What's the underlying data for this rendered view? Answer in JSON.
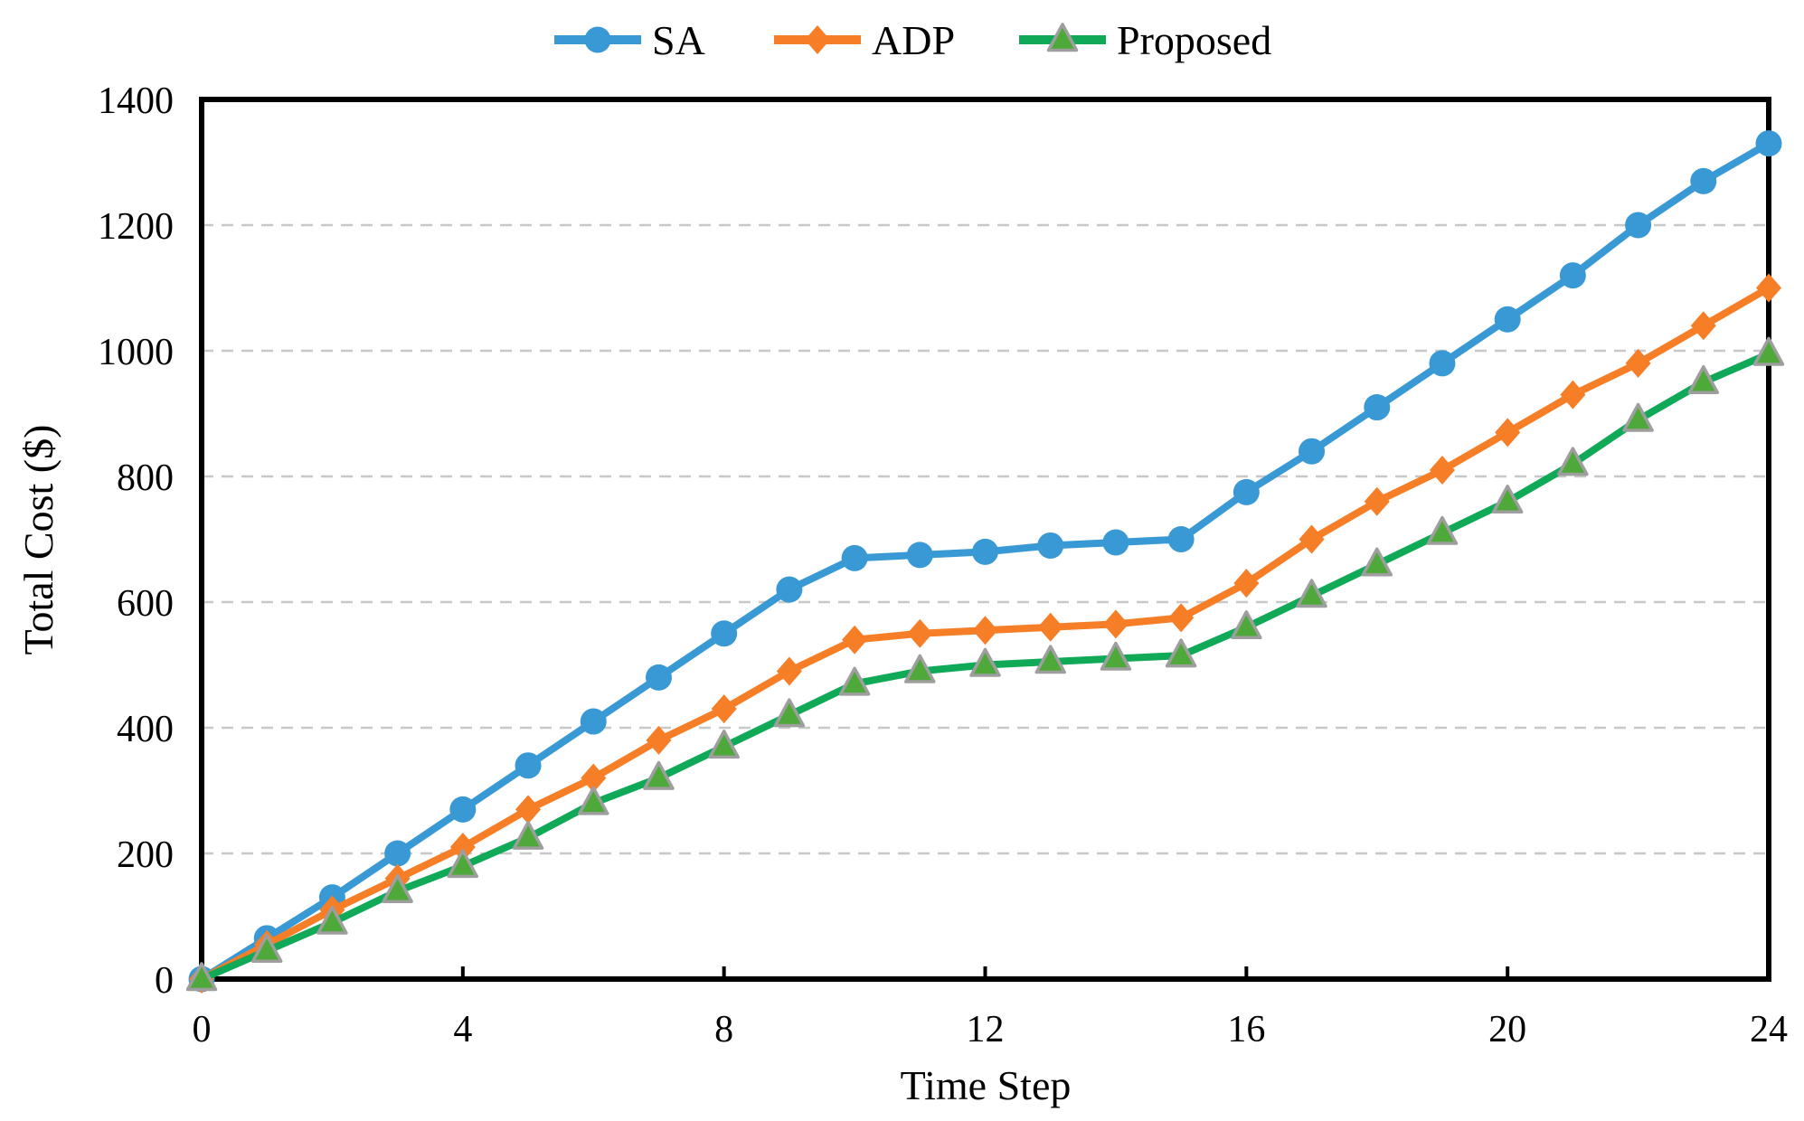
{
  "chart_data": {
    "type": "line",
    "title": "",
    "xlabel": "Time Step",
    "ylabel": "Total Cost ($)",
    "xlim": [
      0,
      24
    ],
    "ylim": [
      0,
      1400
    ],
    "x_ticks": [
      0,
      4,
      8,
      12,
      16,
      20,
      24
    ],
    "y_ticks": [
      0,
      200,
      400,
      600,
      800,
      1000,
      1200,
      1400
    ],
    "grid": "horizontal dashed gridlines at 200-unit intervals, full black frame around plot",
    "legend_position": "top-center, horizontal, no border",
    "x": [
      0,
      1,
      2,
      3,
      4,
      5,
      6,
      7,
      8,
      9,
      10,
      11,
      12,
      13,
      14,
      15,
      16,
      17,
      18,
      19,
      20,
      21,
      22,
      23,
      24
    ],
    "series": [
      {
        "name": "SA",
        "marker": "circle",
        "color": "#3899D5",
        "values": [
          0,
          65,
          130,
          200,
          270,
          340,
          410,
          480,
          550,
          620,
          670,
          675,
          680,
          690,
          695,
          700,
          775,
          840,
          910,
          980,
          1050,
          1120,
          1200,
          1270,
          1330
        ]
      },
      {
        "name": "ADP",
        "marker": "diamond",
        "color": "#F57E27",
        "values": [
          0,
          55,
          110,
          160,
          210,
          270,
          320,
          380,
          430,
          490,
          540,
          550,
          555,
          560,
          565,
          575,
          630,
          700,
          760,
          810,
          870,
          930,
          980,
          1040,
          1100
        ]
      },
      {
        "name": "Proposed",
        "marker": "triangle",
        "color": "#10A957",
        "marker_fill": "#4FA83A",
        "marker_edge": "#9E9E9E",
        "values": [
          0,
          45,
          90,
          140,
          180,
          225,
          280,
          320,
          370,
          420,
          470,
          490,
          500,
          505,
          510,
          515,
          560,
          610,
          660,
          710,
          760,
          820,
          890,
          950,
          995
        ]
      }
    ],
    "grid_color": "#C8C8C8",
    "frame_color": "#000000",
    "text_color": "#000000"
  }
}
